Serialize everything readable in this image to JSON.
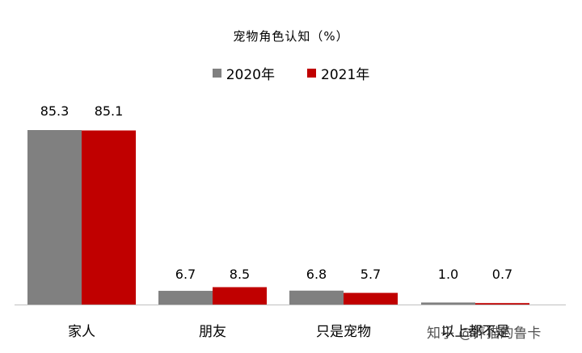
{
  "chart_data": {
    "type": "bar",
    "title": "宠物角色认知（%）",
    "categories": [
      "家人",
      "朋友",
      "只是宠物",
      "以上都不是"
    ],
    "series": [
      {
        "name": "2020年",
        "color": "#808080",
        "values": [
          85.3,
          6.7,
          6.8,
          1.0
        ]
      },
      {
        "name": "2021年",
        "color": "#c00000",
        "values": [
          85.1,
          8.5,
          5.7,
          0.7
        ]
      }
    ],
    "data_labels": [
      [
        "85.3",
        "6.7",
        "6.8",
        "1.0"
      ],
      [
        "85.1",
        "8.5",
        "5.7",
        "0.7"
      ]
    ],
    "ylim": [
      0,
      85.3
    ],
    "grid": false,
    "legend_position": "top-center"
  },
  "watermark_overlay": "知乎 @养猫的鲁卡"
}
